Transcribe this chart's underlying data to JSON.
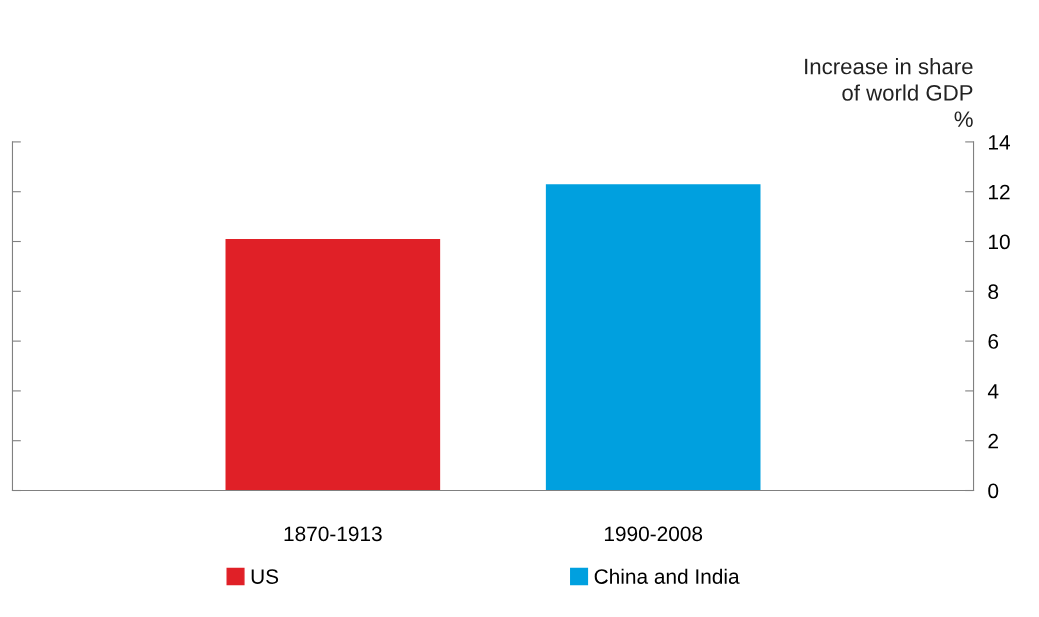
{
  "chart_data": {
    "type": "bar",
    "ylabel": "Increase in share\nof world GDP\n%",
    "categories": [
      "1870-1913",
      "1990-2008"
    ],
    "series": [
      {
        "name": "US",
        "color": "#e02027",
        "values": [
          10.1,
          null
        ]
      },
      {
        "name": "China and India",
        "color": "#00a0df",
        "values": [
          null,
          12.3
        ]
      }
    ],
    "ylim": [
      0,
      14
    ],
    "yticks": [
      0,
      2,
      4,
      6,
      8,
      10,
      12,
      14
    ],
    "grid": false,
    "legend": "bottom"
  }
}
